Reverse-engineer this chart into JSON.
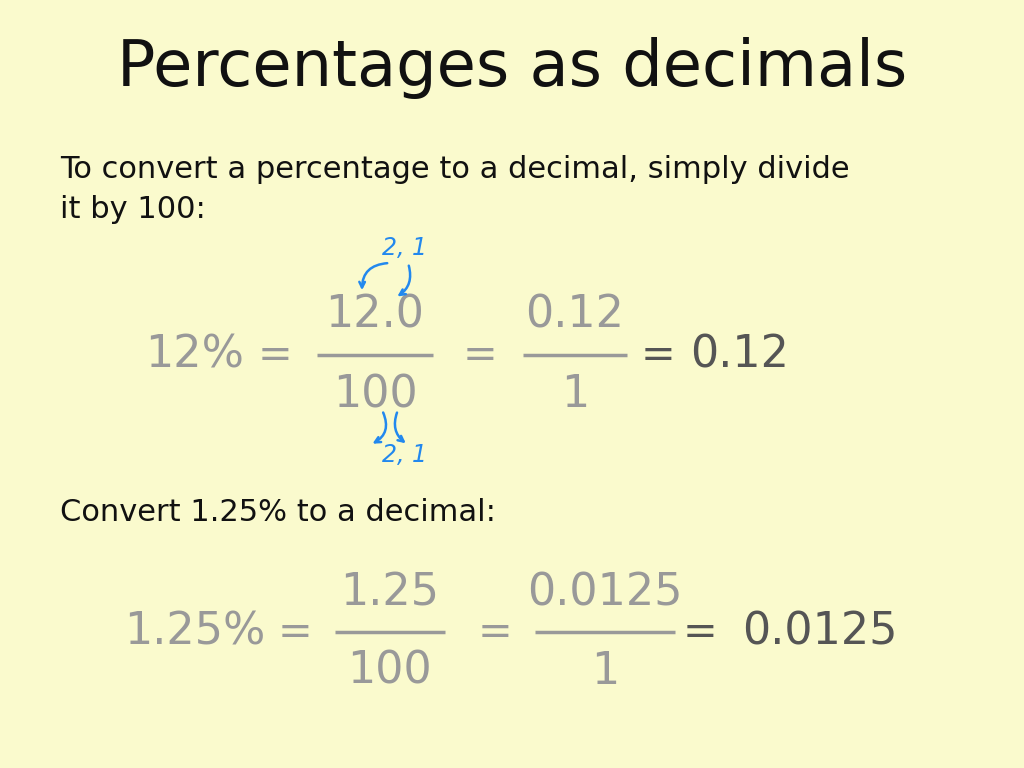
{
  "title": "Percentages as decimals",
  "background_color": "#FAFACD",
  "title_fontsize": 46,
  "title_color": "#111111",
  "body_text_line1": "To convert a percentage to a decimal, simply divide",
  "body_text_line2": "it by 100:",
  "body_fontsize": 22,
  "body_color": "#111111",
  "fraction_color": "#999999",
  "equal_color": "#999999",
  "result_color": "#555555",
  "blue_color": "#2288EE",
  "convert_text": "Convert 1.25% to a decimal:",
  "row1_percent": "12%",
  "row1_num1": "12.0",
  "row1_den1": "100",
  "row1_num2": "0.12",
  "row1_den2": "1",
  "row1_result": "0.12",
  "row2_percent": "1.25%",
  "row2_num1": "1.25",
  "row2_den1": "100",
  "row2_num2": "0.0125",
  "row2_den2": "1",
  "row2_result": "0.0125"
}
